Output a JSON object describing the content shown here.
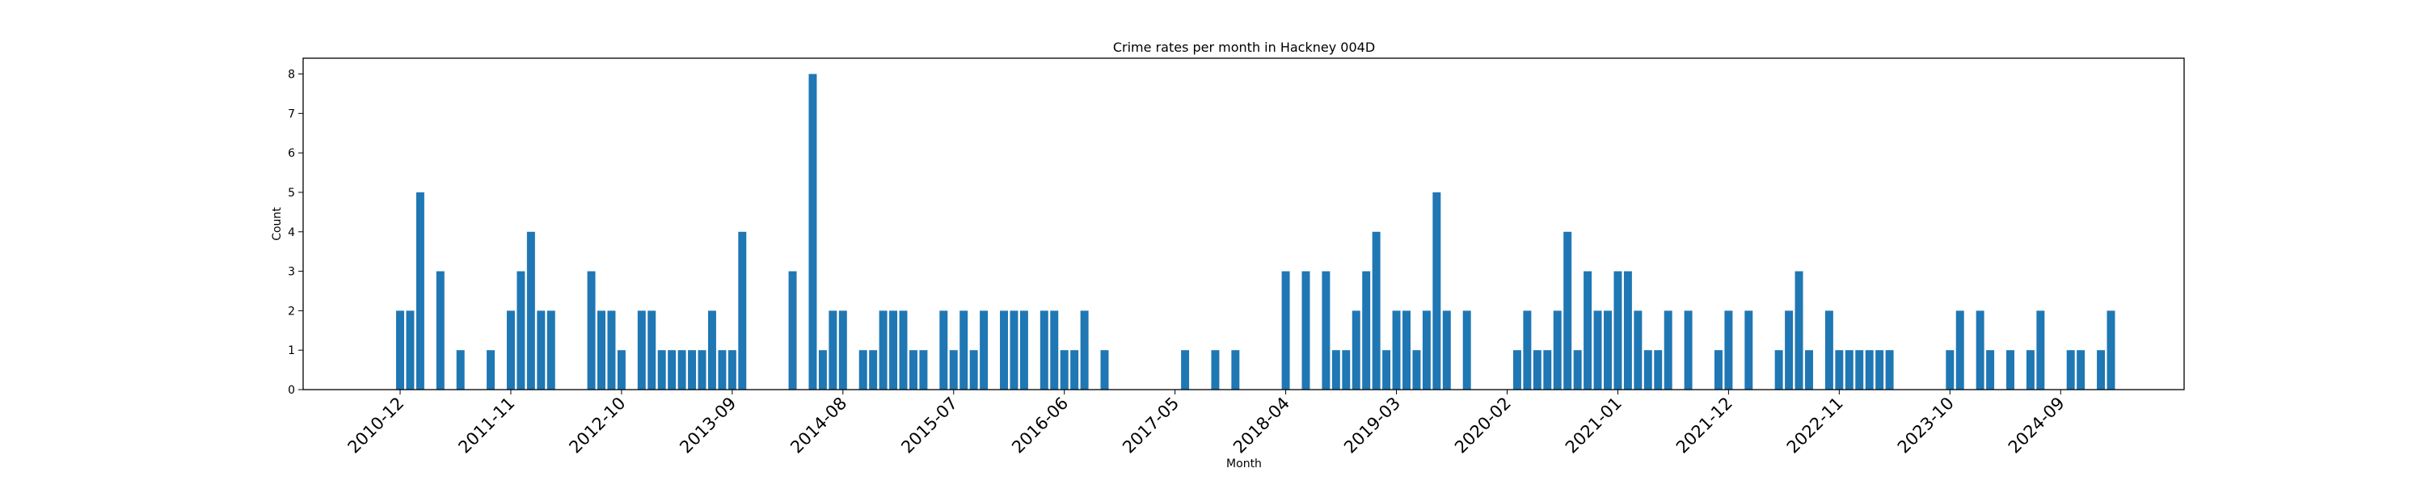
{
  "chart_data": {
    "type": "bar",
    "title": "Crime rates per month in Hackney 004D",
    "xlabel": "Month",
    "ylabel": "Count",
    "ylim": [
      0,
      8.4
    ],
    "yticks": [
      0,
      1,
      2,
      3,
      4,
      5,
      6,
      7,
      8
    ],
    "xticks": [
      "2010-12",
      "2011-11",
      "2012-10",
      "2013-09",
      "2014-08",
      "2015-07",
      "2016-06",
      "2017-05",
      "2018-04",
      "2019-03",
      "2020-02",
      "2021-01",
      "2021-12",
      "2022-11",
      "2023-10",
      "2024-09"
    ],
    "grid": false,
    "legend": "none",
    "bar_color": "#1f77b4",
    "series": [
      {
        "x": [
          "2010-12",
          "2011-01",
          "2011-02",
          "2011-04",
          "2011-06",
          "2011-09",
          "2011-11",
          "2011-12",
          "2012-01",
          "2012-02",
          "2012-03",
          "2012-07",
          "2012-08",
          "2012-09",
          "2012-10",
          "2012-12",
          "2013-01",
          "2013-02",
          "2013-03",
          "2013-04",
          "2013-05",
          "2013-06",
          "2013-07",
          "2013-08",
          "2013-09",
          "2013-10",
          "2014-03",
          "2014-05",
          "2014-06",
          "2014-07",
          "2014-08",
          "2014-10",
          "2014-11",
          "2014-12",
          "2015-01",
          "2015-02",
          "2015-03",
          "2015-04",
          "2015-06",
          "2015-07",
          "2015-08",
          "2015-09",
          "2015-10",
          "2015-12",
          "2016-01",
          "2016-02",
          "2016-04",
          "2016-05",
          "2016-06",
          "2016-07",
          "2016-08",
          "2016-10",
          "2017-06",
          "2017-09",
          "2017-11",
          "2018-04",
          "2018-06",
          "2018-08",
          "2018-09",
          "2018-10",
          "2018-11",
          "2018-12",
          "2019-01",
          "2019-02",
          "2019-03",
          "2019-04",
          "2019-05",
          "2019-06",
          "2019-07",
          "2019-08",
          "2019-10",
          "2020-03",
          "2020-04",
          "2020-05",
          "2020-06",
          "2020-07",
          "2020-08",
          "2020-09",
          "2020-10",
          "2020-11",
          "2020-12",
          "2021-01",
          "2021-02",
          "2021-03",
          "2021-04",
          "2021-05",
          "2021-06",
          "2021-08",
          "2021-11",
          "2021-12",
          "2022-02",
          "2022-05",
          "2022-06",
          "2022-07",
          "2022-08",
          "2022-10",
          "2022-11",
          "2022-12",
          "2023-01",
          "2023-02",
          "2023-03",
          "2023-04",
          "2023-10",
          "2023-11",
          "2024-01",
          "2024-02",
          "2024-04",
          "2024-06",
          "2024-07",
          "2024-10",
          "2024-11",
          "2025-01",
          "2025-02"
        ],
        "values": [
          2,
          2,
          5,
          3,
          1,
          1,
          2,
          3,
          4,
          2,
          2,
          3,
          2,
          2,
          1,
          2,
          2,
          1,
          1,
          1,
          1,
          1,
          2,
          1,
          1,
          4,
          3,
          8,
          1,
          2,
          2,
          1,
          1,
          2,
          2,
          2,
          1,
          1,
          2,
          1,
          2,
          1,
          2,
          2,
          2,
          2,
          2,
          2,
          1,
          1,
          2,
          1,
          1,
          1,
          1,
          3,
          3,
          3,
          1,
          1,
          2,
          3,
          4,
          1,
          2,
          2,
          1,
          2,
          5,
          2,
          2,
          1,
          2,
          1,
          1,
          2,
          4,
          1,
          3,
          2,
          2,
          3,
          3,
          2,
          1,
          1,
          2,
          2,
          1,
          2,
          2,
          1,
          2,
          3,
          1,
          2,
          1,
          1,
          1,
          1,
          1,
          1,
          1,
          2,
          2,
          1,
          1,
          1,
          2,
          1,
          1,
          1,
          2
        ]
      }
    ]
  }
}
